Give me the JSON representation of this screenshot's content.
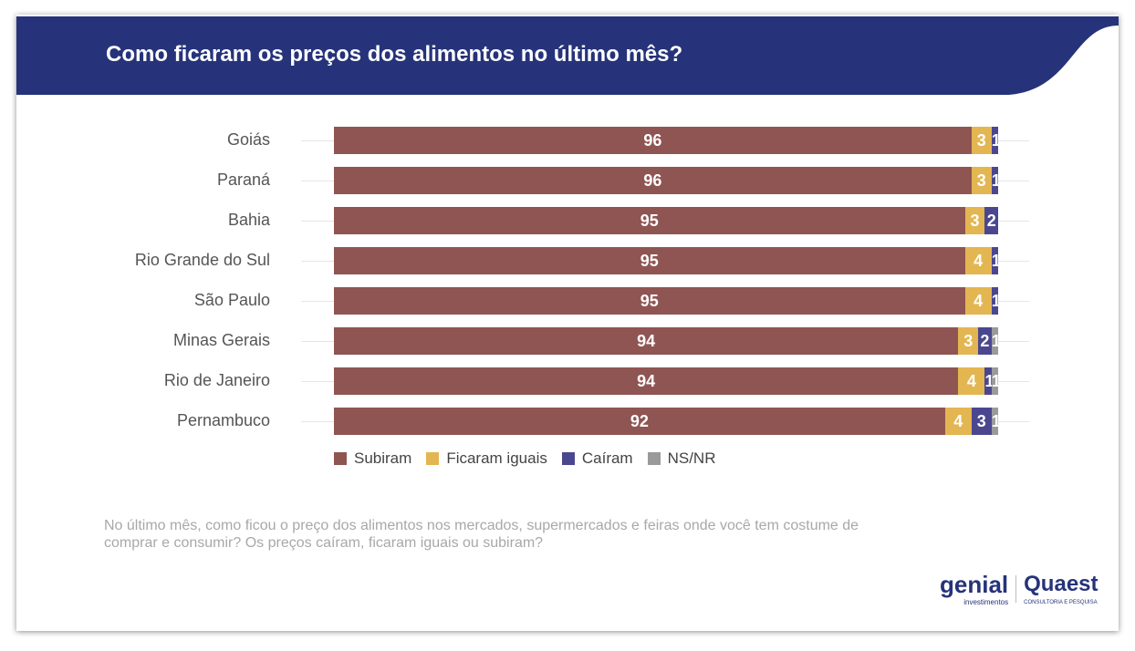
{
  "title": "Como ficaram os preços dos alimentos no último mês?",
  "chart_data": {
    "type": "bar",
    "orientation": "horizontal",
    "stacked": true,
    "title": "Como ficaram os preços dos alimentos no último mês?",
    "categories": [
      "Goiás",
      "Paraná",
      "Bahia",
      "Rio Grande do Sul",
      "São Paulo",
      "Minas Gerais",
      "Rio de Janeiro",
      "Pernambuco"
    ],
    "series": [
      {
        "name": "Subiram",
        "color": "#8f5552",
        "values": [
          96,
          96,
          95,
          95,
          95,
          94,
          94,
          92
        ]
      },
      {
        "name": "Ficaram iguais",
        "color": "#e3b652",
        "values": [
          3,
          3,
          3,
          4,
          4,
          3,
          4,
          4
        ]
      },
      {
        "name": "Caíram",
        "color": "#4b478f",
        "values": [
          1,
          1,
          2,
          1,
          1,
          2,
          1,
          3
        ]
      },
      {
        "name": "NS/NR",
        "color": "#9a9a9a",
        "values": [
          0,
          0,
          0,
          0,
          0,
          1,
          1,
          1
        ]
      }
    ],
    "xlim": [
      0,
      100
    ],
    "legend": "bottom"
  },
  "footnote": "No último mês, como ficou o preço dos alimentos nos mercados, supermercados e feiras onde você tem costume de comprar e consumir? Os preços caíram, ficaram iguais ou subiram?",
  "logos": {
    "genial": "genial",
    "genial_sub": "investimentos",
    "quaest": "Quaest",
    "quaest_sub": "CONSULTORIA E PESQUISA"
  }
}
